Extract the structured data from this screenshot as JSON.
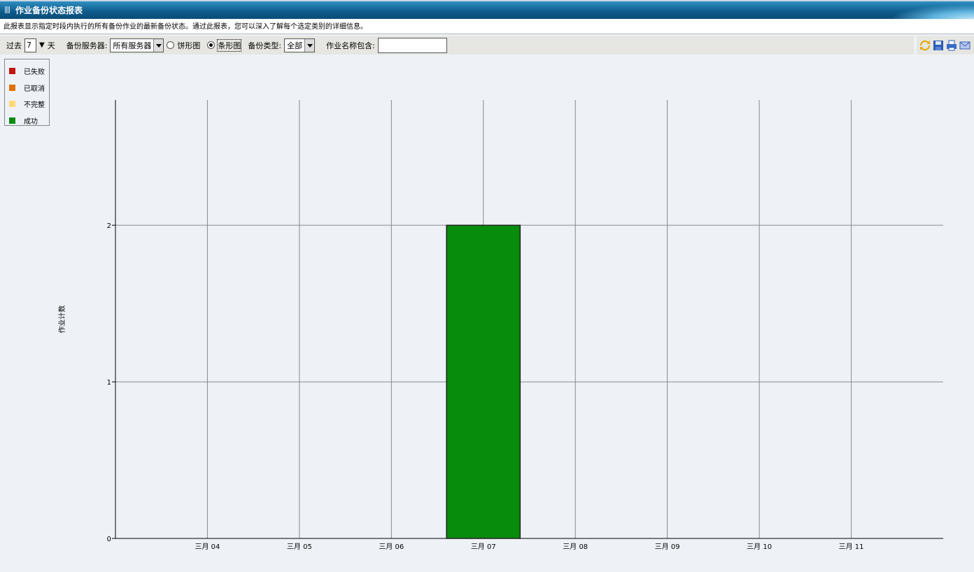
{
  "title": "作业备份状态报表",
  "description": "此报表显示指定时段内执行的所有备份作业的最新备份状态。通过此报表，您可以深入了解每个选定类别的详细信息。",
  "toolbar": {
    "past_label": "过去",
    "days_value": "7",
    "days_unit": "天",
    "server_label": "备份服务器:",
    "server_value": "所有服务器",
    "pie_label": "饼形图",
    "bar_label": "条形图",
    "chart_mode": "bar",
    "type_label": "备份类型:",
    "type_value": "全部",
    "name_label": "作业名称包含:",
    "name_value": ""
  },
  "icons": [
    "refresh-icon",
    "save-icon",
    "print-icon",
    "email-icon"
  ],
  "chart_data": {
    "type": "bar",
    "categories": [
      "三月 04",
      "三月 05",
      "三月 06",
      "三月 07",
      "三月 08",
      "三月 09",
      "三月 10",
      "三月 11"
    ],
    "ylabel": "作业计数",
    "ylim": [
      0,
      2.8
    ],
    "yticks": [
      0,
      1,
      2
    ],
    "grid": true,
    "legend_position": "top-left",
    "legend": [
      {
        "name": "已失败",
        "color": "#c0140c"
      },
      {
        "name": "已取消",
        "color": "#e07000"
      },
      {
        "name": "不完整",
        "color": "#ffd878"
      },
      {
        "name": "成功",
        "color": "#088c0c"
      }
    ],
    "series": [
      {
        "name": "已失败",
        "values": [
          0,
          0,
          0,
          0,
          0,
          0,
          0,
          0
        ]
      },
      {
        "name": "已取消",
        "values": [
          0,
          0,
          0,
          0,
          0,
          0,
          0,
          0
        ]
      },
      {
        "name": "不完整",
        "values": [
          0,
          0,
          0,
          0,
          0,
          0,
          0,
          0
        ]
      },
      {
        "name": "成功",
        "values": [
          0,
          0,
          0,
          2,
          0,
          0,
          0,
          0
        ]
      }
    ]
  }
}
